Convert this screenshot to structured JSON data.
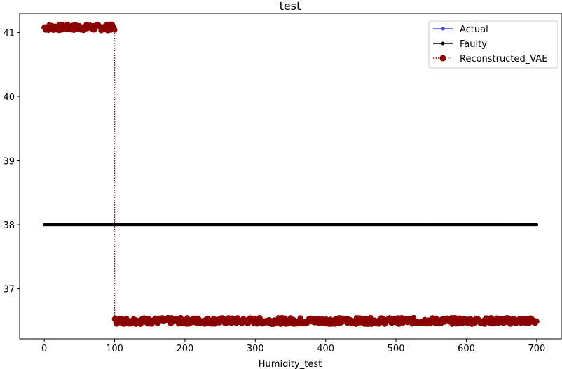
{
  "chart_data": {
    "type": "line",
    "title": "test",
    "xlabel": "Humidity_test",
    "ylabel": "",
    "xlim": [
      -35,
      735
    ],
    "ylim": [
      36.22,
      41.3
    ],
    "xticks": [
      0,
      100,
      200,
      300,
      400,
      500,
      600,
      700
    ],
    "yticks": [
      37,
      38,
      39,
      40,
      41
    ],
    "grid": false,
    "legend_position": "top-right",
    "series": [
      {
        "name": "Actual",
        "color": "#4a4af0",
        "style": "solid-line-small-dots",
        "x_range": [
          0,
          700
        ],
        "y": 38.0
      },
      {
        "name": "Faulty",
        "color": "#000000",
        "style": "solid-line-small-dots",
        "x_range": [
          0,
          700
        ],
        "y": 38.0
      },
      {
        "name": "Reconstructed_VAE",
        "color": "#8b0000",
        "style": "dotted-line-large-dots",
        "segments": [
          {
            "x_range": [
              0,
              100
            ],
            "y_mean": 41.08,
            "y_spread": 0.05
          },
          {
            "x_range": [
              100,
              700
            ],
            "y_mean": 36.5,
            "y_spread": 0.05
          }
        ],
        "jump": {
          "x": 100,
          "from": 41.07,
          "to": 36.5
        }
      }
    ]
  }
}
